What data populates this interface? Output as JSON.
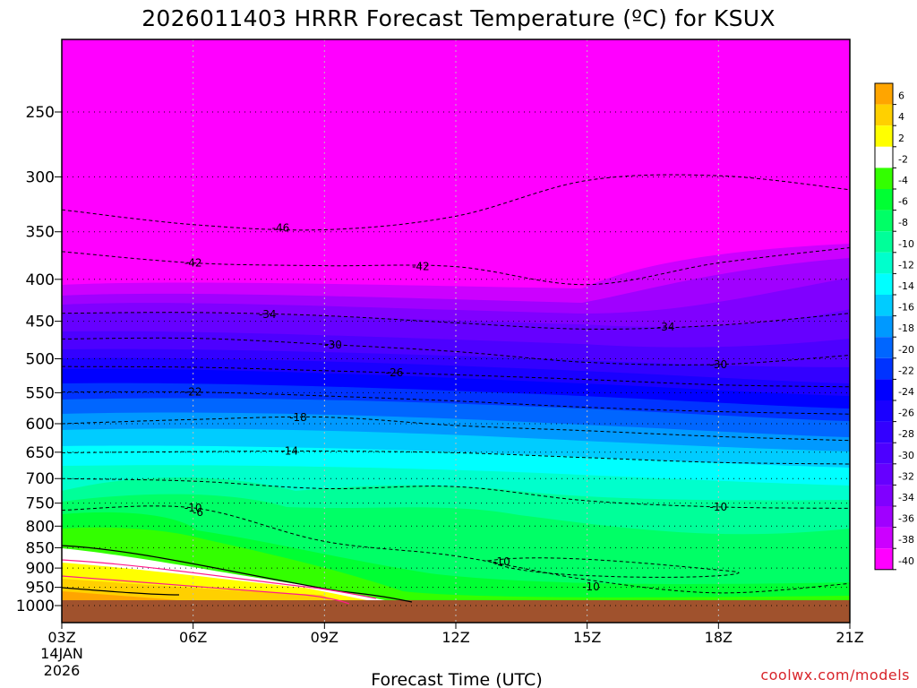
{
  "chart_data": {
    "type": "heatmap",
    "title": "2026011403 HRRR Forecast Temperature (ºC) for KSUX",
    "xlabel": "Forecast Time (UTC)",
    "ylabel": "",
    "x_ticks": [
      "03Z",
      "06Z",
      "09Z",
      "12Z",
      "15Z",
      "18Z",
      "21Z"
    ],
    "x_date_line1": "14JAN",
    "x_date_line2": "2026",
    "y_ticks": [
      250,
      300,
      350,
      400,
      450,
      500,
      550,
      600,
      650,
      700,
      750,
      800,
      850,
      900,
      950,
      1000
    ],
    "y_scale": "log-pressure",
    "y_range_hPa": [
      200,
      1035
    ],
    "x_range_hours": [
      3,
      21
    ],
    "grid": true,
    "colorbar": {
      "labels": [
        6,
        4,
        2,
        -2,
        -4,
        -6,
        -8,
        -10,
        -12,
        -14,
        -16,
        -18,
        -20,
        -22,
        -24,
        -26,
        -28,
        -30,
        -32,
        -34,
        -36,
        -38,
        -40
      ],
      "colors": [
        "#ffa500",
        "#ffd000",
        "#ffff00",
        "#ffffff",
        "#33ff00",
        "#00ff33",
        "#00ff66",
        "#00ff99",
        "#00ffcc",
        "#00ffff",
        "#00ccff",
        "#0099ff",
        "#0066ff",
        "#0033ff",
        "#0000ff",
        "#1a00ff",
        "#3300ff",
        "#4d00ff",
        "#6600ff",
        "#8000ff",
        "#a000ff",
        "#cc00ff",
        "#ff00ff"
      ]
    },
    "temperature_levels": {
      "hours": [
        3,
        6,
        9,
        12,
        15,
        18,
        21
      ],
      "isotherms": [
        {
          "label": "-46",
          "pressure": [
            329,
            343,
            348,
            335,
            303,
            299,
            311
          ]
        },
        {
          "label": "-42",
          "pressure": [
            370,
            382,
            385,
            386,
            406,
            382,
            366
          ]
        },
        {
          "label": "-34",
          "pressure": [
            440,
            439,
            443,
            452,
            460,
            455,
            440
          ]
        },
        {
          "label": "-30",
          "pressure": [
            473,
            472,
            480,
            490,
            505,
            508,
            495
          ]
        },
        {
          "label": "-26",
          "pressure": [
            511,
            512,
            517,
            523,
            530,
            538,
            541
          ]
        },
        {
          "label": "-22",
          "pressure": [
            549,
            549,
            555,
            563,
            573,
            580,
            584
          ]
        },
        {
          "label": "-18",
          "pressure": [
            600,
            593,
            589,
            603,
            612,
            622,
            629
          ]
        },
        {
          "label": "-14",
          "pressure": [
            651,
            649,
            648,
            651,
            660,
            669,
            672
          ]
        },
        {
          "label": "-10",
          "pressure": [
            700,
            705,
            720,
            716,
            745,
            758,
            761
          ]
        },
        {
          "label": "-6",
          "pressure": [
            765,
            760,
            835,
            870,
            930,
            965,
            940
          ]
        }
      ],
      "surface_hPa": 970
    },
    "contour_labels": [
      "-46",
      "-42",
      "-42",
      "-34",
      "-34",
      "-30",
      "-30",
      "-26",
      "-22",
      "-18",
      "-14",
      "-10",
      "-10",
      "-10",
      "-6"
    ]
  },
  "footer": {
    "credit": "coolwx.com/models"
  }
}
